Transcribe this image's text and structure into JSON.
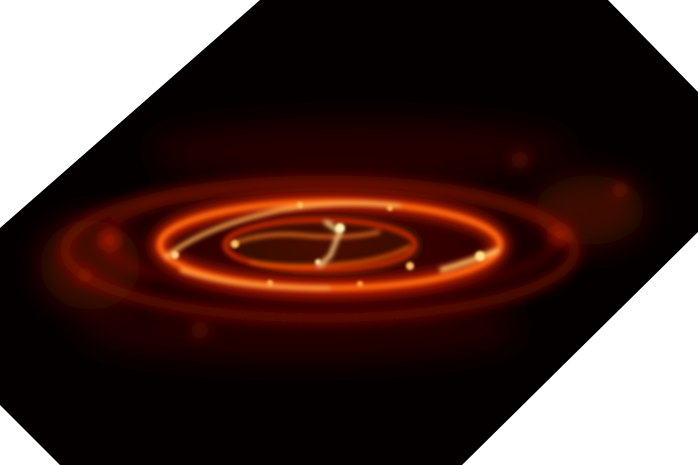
{
  "image": {
    "subject": "infrared-galaxy-ring",
    "palette": {
      "background_outside": "#ffffff",
      "field": "#050000",
      "glow_dark": "#3a0600",
      "glow_mid": "#b21c00",
      "glow_bright": "#ff5a00",
      "glow_hot": "#ffc060",
      "glow_core": "#fff1b0"
    }
  }
}
